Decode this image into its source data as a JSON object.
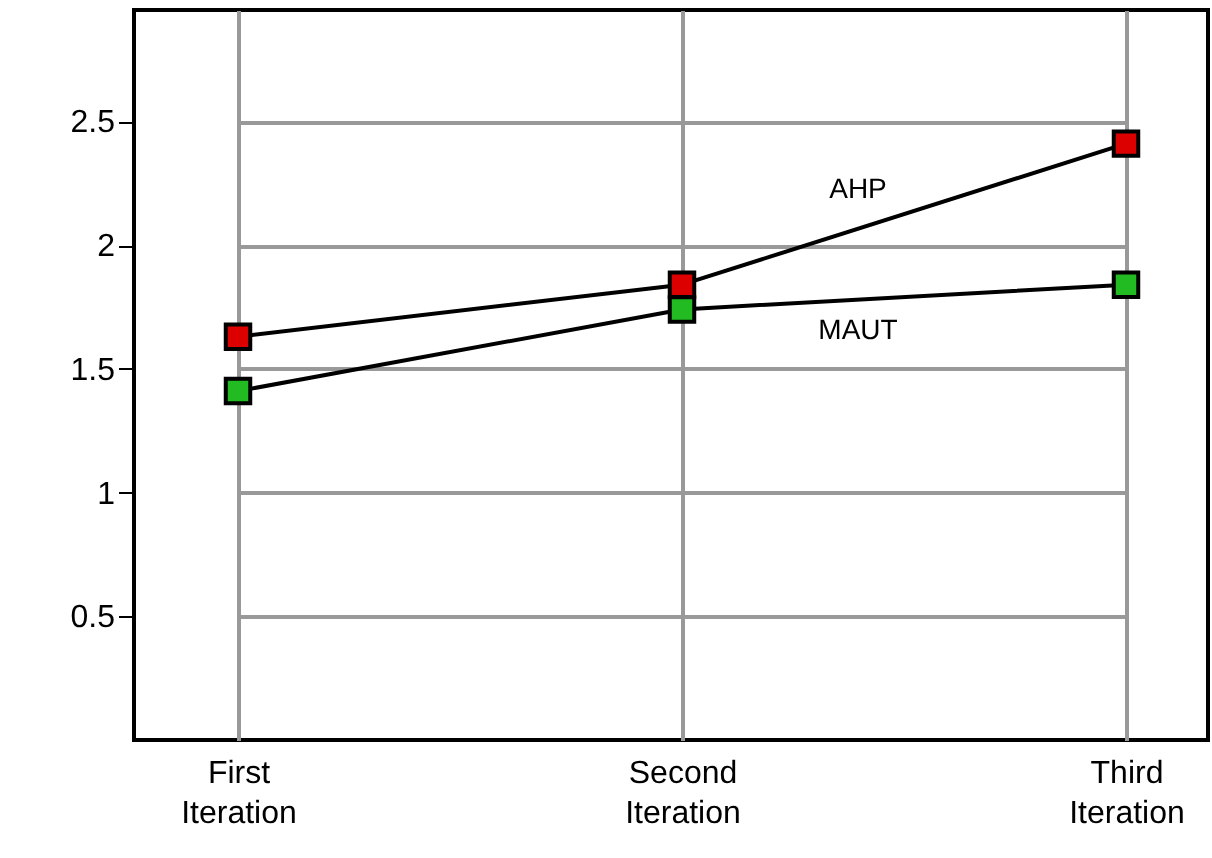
{
  "chart_data": {
    "type": "line",
    "categories": [
      "First Iteration",
      "Second Iteration",
      "Third Iteration"
    ],
    "series": [
      {
        "name": "AHP",
        "color": "#dd0000",
        "values": [
          1.63,
          1.84,
          2.41
        ]
      },
      {
        "name": "MAUT",
        "color": "#22bb22",
        "values": [
          1.41,
          1.74,
          1.84
        ]
      }
    ],
    "ylim": [
      0,
      2.95
    ],
    "yticks": [
      0.5,
      1,
      1.5,
      2,
      2.5
    ],
    "grid": true,
    "marker": "square",
    "line_style": "solid"
  }
}
